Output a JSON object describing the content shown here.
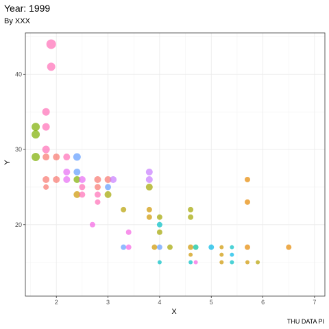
{
  "chart_data": {
    "type": "scatter",
    "title": "Year: 1999",
    "subtitle": "By XXX",
    "caption": "THU DATA PI",
    "xlabel": "X",
    "ylabel": "Y",
    "xlim": [
      1.4,
      7.2
    ],
    "ylim": [
      10.5,
      45.5
    ],
    "xticks": [
      "2",
      "3",
      "4",
      "5",
      "6",
      "7"
    ],
    "yticks": [
      "20",
      "30",
      "40"
    ],
    "xtick_values": [
      2,
      3,
      4,
      5,
      6,
      7
    ],
    "ytick_values": [
      20,
      30,
      40
    ],
    "grid": true,
    "legend": "none",
    "points": [
      {
        "x": 1.9,
        "y": 44,
        "s": 7,
        "c": "#FF6DB6"
      },
      {
        "x": 1.9,
        "y": 41,
        "s": 6,
        "c": "#FF6DB6"
      },
      {
        "x": 1.8,
        "y": 35,
        "s": 5.5,
        "c": "#FF6DB6"
      },
      {
        "x": 1.8,
        "y": 33,
        "s": 5.5,
        "c": "#FF6DB6"
      },
      {
        "x": 1.6,
        "y": 33,
        "s": 6,
        "c": "#7CAE00"
      },
      {
        "x": 1.6,
        "y": 32,
        "s": 6,
        "c": "#7CAE00"
      },
      {
        "x": 1.8,
        "y": 30,
        "s": 5.5,
        "c": "#FF6DB6"
      },
      {
        "x": 1.6,
        "y": 29,
        "s": 6,
        "c": "#7CAE00"
      },
      {
        "x": 1.8,
        "y": 29,
        "s": 5,
        "c": "#F8766D"
      },
      {
        "x": 2.0,
        "y": 29,
        "s": 5,
        "c": "#F8766D"
      },
      {
        "x": 2.2,
        "y": 29,
        "s": 5,
        "c": "#FF6DB6"
      },
      {
        "x": 2.4,
        "y": 29,
        "s": 5.5,
        "c": "#619CFF"
      },
      {
        "x": 1.8,
        "y": 26,
        "s": 5,
        "c": "#F8766D"
      },
      {
        "x": 2.0,
        "y": 26,
        "s": 5,
        "c": "#F8766D"
      },
      {
        "x": 2.2,
        "y": 26,
        "s": 5,
        "c": "#E76BF3"
      },
      {
        "x": 2.4,
        "y": 26,
        "s": 5,
        "c": "#7CAE00"
      },
      {
        "x": 2.5,
        "y": 26,
        "s": 5,
        "c": "#E76BF3"
      },
      {
        "x": 2.8,
        "y": 26,
        "s": 5,
        "c": "#F8766D"
      },
      {
        "x": 3.0,
        "y": 26,
        "s": 5,
        "c": "#F8766D"
      },
      {
        "x": 3.1,
        "y": 26,
        "s": 5,
        "c": "#C77CFF"
      },
      {
        "x": 3.8,
        "y": 26,
        "s": 5,
        "c": "#C77CFF"
      },
      {
        "x": 2.2,
        "y": 27,
        "s": 5,
        "c": "#E76BF3"
      },
      {
        "x": 2.4,
        "y": 27,
        "s": 5,
        "c": "#619CFF"
      },
      {
        "x": 3.8,
        "y": 27,
        "s": 5,
        "c": "#C77CFF"
      },
      {
        "x": 1.8,
        "y": 25,
        "s": 4,
        "c": "#F8766D"
      },
      {
        "x": 2.5,
        "y": 25,
        "s": 4.5,
        "c": "#FF6DB6"
      },
      {
        "x": 2.8,
        "y": 25,
        "s": 4.5,
        "c": "#F8766D"
      },
      {
        "x": 3.0,
        "y": 25,
        "s": 4.5,
        "c": "#619CFF"
      },
      {
        "x": 3.8,
        "y": 25,
        "s": 5,
        "c": "#A3A500"
      },
      {
        "x": 2.4,
        "y": 24,
        "s": 5,
        "c": "#CD9600"
      },
      {
        "x": 2.5,
        "y": 24,
        "s": 4.5,
        "c": "#FF6DB6"
      },
      {
        "x": 2.8,
        "y": 24,
        "s": 4.5,
        "c": "#FF6DB6"
      },
      {
        "x": 3.0,
        "y": 24,
        "s": 5,
        "c": "#A3A500"
      },
      {
        "x": 2.8,
        "y": 23,
        "s": 4,
        "c": "#FF6DB6"
      },
      {
        "x": 3.3,
        "y": 22,
        "s": 4,
        "c": "#B79F00"
      },
      {
        "x": 3.8,
        "y": 22,
        "s": 4,
        "c": "#CD9600"
      },
      {
        "x": 4.6,
        "y": 22,
        "s": 4,
        "c": "#A3A500"
      },
      {
        "x": 3.8,
        "y": 21,
        "s": 4,
        "c": "#CD9600"
      },
      {
        "x": 4.0,
        "y": 21,
        "s": 4,
        "c": "#A3A500"
      },
      {
        "x": 4.6,
        "y": 21,
        "s": 4,
        "c": "#A3A500"
      },
      {
        "x": 2.7,
        "y": 20,
        "s": 4,
        "c": "#F564E3"
      },
      {
        "x": 4.0,
        "y": 20,
        "s": 4,
        "c": "#00BFC4"
      },
      {
        "x": 3.4,
        "y": 19,
        "s": 4,
        "c": "#F564E3"
      },
      {
        "x": 4.0,
        "y": 19,
        "s": 4,
        "c": "#A3A500"
      },
      {
        "x": 5.7,
        "y": 26,
        "s": 4,
        "c": "#E58700"
      },
      {
        "x": 5.7,
        "y": 23,
        "s": 4,
        "c": "#E58700"
      },
      {
        "x": 3.3,
        "y": 17,
        "s": 4,
        "c": "#619CFF"
      },
      {
        "x": 3.4,
        "y": 17,
        "s": 4,
        "c": "#F564E3"
      },
      {
        "x": 3.9,
        "y": 17,
        "s": 4,
        "c": "#CD9600"
      },
      {
        "x": 4.0,
        "y": 17,
        "s": 4,
        "c": "#619CFF"
      },
      {
        "x": 4.2,
        "y": 17,
        "s": 4,
        "c": "#A3A500"
      },
      {
        "x": 4.6,
        "y": 17,
        "s": 4,
        "c": "#CD9600"
      },
      {
        "x": 4.7,
        "y": 17,
        "s": 4,
        "c": "#00C19A"
      },
      {
        "x": 5.0,
        "y": 17,
        "s": 4,
        "c": "#00B8E7"
      },
      {
        "x": 5.2,
        "y": 17,
        "s": 3,
        "c": "#CD9600"
      },
      {
        "x": 5.4,
        "y": 17,
        "s": 3,
        "c": "#00BFC4"
      },
      {
        "x": 5.7,
        "y": 17,
        "s": 4,
        "c": "#E58700"
      },
      {
        "x": 6.5,
        "y": 17,
        "s": 4,
        "c": "#E58700"
      },
      {
        "x": 4.6,
        "y": 16,
        "s": 3,
        "c": "#CD9600"
      },
      {
        "x": 5.2,
        "y": 16,
        "s": 3,
        "c": "#CD9600"
      },
      {
        "x": 5.4,
        "y": 16,
        "s": 3,
        "c": "#00B8E7"
      },
      {
        "x": 4.0,
        "y": 15,
        "s": 3,
        "c": "#00BFC4"
      },
      {
        "x": 4.6,
        "y": 15,
        "s": 3,
        "c": "#00BFC4"
      },
      {
        "x": 4.7,
        "y": 15,
        "s": 3,
        "c": "#F564E3"
      },
      {
        "x": 5.2,
        "y": 15,
        "s": 3,
        "c": "#CD9600"
      },
      {
        "x": 5.4,
        "y": 15,
        "s": 3,
        "c": "#00BFC4"
      },
      {
        "x": 5.7,
        "y": 15,
        "s": 3,
        "c": "#CD9600"
      },
      {
        "x": 5.9,
        "y": 15,
        "s": 3,
        "c": "#B79F00"
      }
    ]
  }
}
